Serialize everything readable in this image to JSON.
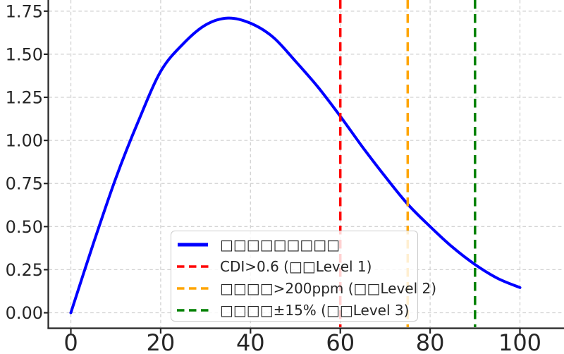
{
  "chart_data": {
    "type": "line",
    "title": "",
    "xlabel": "",
    "ylabel": "",
    "grid": true,
    "grid_style": "dashed",
    "xlim": [
      -5.1,
      109.9
    ],
    "ylim": [
      -0.088,
      1.813
    ],
    "xticks": [
      "0",
      "20",
      "40",
      "60",
      "80",
      "100"
    ],
    "yticks": [
      "0.00",
      "0.25",
      "0.50",
      "0.75",
      "1.00",
      "1.25",
      "1.50",
      "1.75"
    ],
    "x": [
      0,
      5,
      10,
      15,
      20,
      25,
      30,
      35,
      40,
      45,
      50,
      55,
      60,
      65,
      70,
      75,
      80,
      85,
      90,
      95,
      100
    ],
    "series": [
      {
        "name": "□□□□□□□□□",
        "color": "#0000ff",
        "linestyle": "solid",
        "linewidth": 4,
        "y": [
          0.0,
          0.4,
          0.78,
          1.11,
          1.4,
          1.56,
          1.67,
          1.71,
          1.68,
          1.6,
          1.46,
          1.31,
          1.14,
          0.96,
          0.79,
          0.63,
          0.5,
          0.38,
          0.28,
          0.2,
          0.146
        ]
      }
    ],
    "vlines": [
      {
        "x": 60,
        "color": "#ff0000",
        "linestyle": "dashed",
        "label": "CDI>0.6 (□□Level 1)"
      },
      {
        "x": 75,
        "color": "#ffa500",
        "linestyle": "dashed",
        "label": "□□□□>200ppm (□□Level 2)"
      },
      {
        "x": 90,
        "color": "#008000",
        "linestyle": "dashed",
        "label": "□□□□±15% (□□Level 3)"
      }
    ],
    "legend_position": "lower center",
    "colors": {
      "curve": "#0000ff",
      "threshold1": "#ff0000",
      "threshold2": "#ffa500",
      "threshold3": "#008000",
      "grid": "#d2d2d2",
      "spine": "#262626",
      "tick_label": "#262626"
    }
  }
}
